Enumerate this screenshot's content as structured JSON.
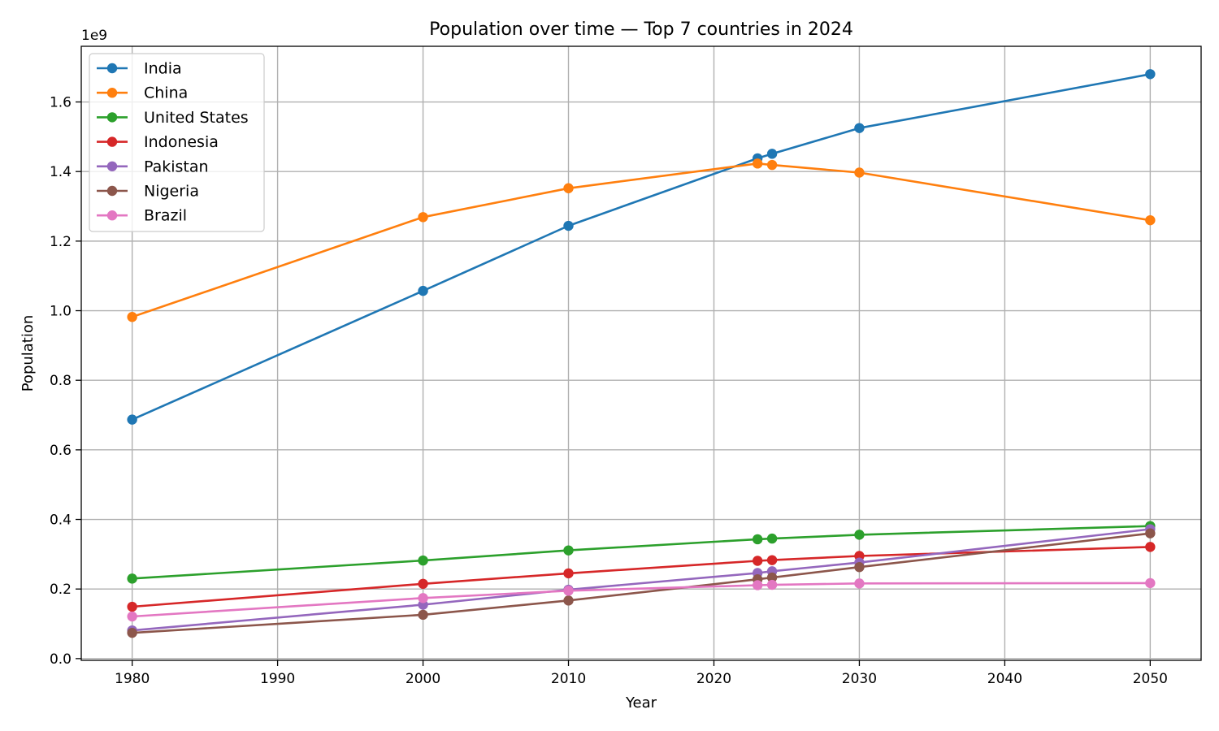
{
  "chart_data": {
    "type": "line",
    "title": "Population over time — Top 7 countries in 2024",
    "xlabel": "Year",
    "ylabel": "Population",
    "y_offset_label": "1e9",
    "y_scale_factor": 1000000000,
    "xlim": [
      1976.5,
      2053.5
    ],
    "ylim": [
      -0.005,
      1.76
    ],
    "xticks": [
      1980,
      1990,
      2000,
      2010,
      2020,
      2030,
      2040,
      2050
    ],
    "yticks": [
      0.0,
      0.2,
      0.4,
      0.6,
      0.8,
      1.0,
      1.2,
      1.4,
      1.6
    ],
    "ytick_labels": [
      "0.0",
      "0.2",
      "0.4",
      "0.6",
      "0.8",
      "1.0",
      "1.2",
      "1.4",
      "1.6"
    ],
    "grid": true,
    "legend_position": "top-left",
    "x": [
      1980,
      2000,
      2010,
      2023,
      2024,
      2030,
      2050
    ],
    "series": [
      {
        "name": "India",
        "color": "#1f77b4",
        "values": [
          0.687,
          1.057,
          1.244,
          1.438,
          1.451,
          1.525,
          1.68
        ]
      },
      {
        "name": "China",
        "color": "#ff7f0e",
        "values": [
          0.982,
          1.269,
          1.352,
          1.423,
          1.419,
          1.397,
          1.26
        ]
      },
      {
        "name": "United States",
        "color": "#2ca02c",
        "values": [
          0.23,
          0.282,
          0.311,
          0.343,
          0.345,
          0.356,
          0.381
        ]
      },
      {
        "name": "Indonesia",
        "color": "#d62728",
        "values": [
          0.149,
          0.215,
          0.245,
          0.281,
          0.283,
          0.295,
          0.321
        ]
      },
      {
        "name": "Pakistan",
        "color": "#9467bd",
        "values": [
          0.081,
          0.155,
          0.198,
          0.246,
          0.251,
          0.276,
          0.372
        ]
      },
      {
        "name": "Nigeria",
        "color": "#8c564b",
        "values": [
          0.074,
          0.126,
          0.167,
          0.228,
          0.233,
          0.263,
          0.36
        ]
      },
      {
        "name": "Brazil",
        "color": "#e377c2",
        "values": [
          0.121,
          0.174,
          0.195,
          0.211,
          0.212,
          0.216,
          0.217
        ]
      }
    ]
  }
}
